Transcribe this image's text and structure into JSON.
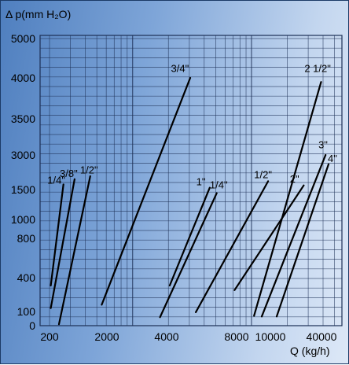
{
  "chart_data": {
    "type": "line",
    "title": "",
    "ylabel": "Δ p(mm H₂O)",
    "xlabel": "Q (kg/h)",
    "x_scale": "log",
    "y_scale": "piecewise",
    "grid": true,
    "colors": {
      "grid": "#1c2f55",
      "line": "#000000",
      "background_left": "#4f7fbf",
      "background_right": "#dde8f7"
    },
    "y_ticks": [
      {
        "label": "5000",
        "value": 5000
      },
      {
        "label": "4000",
        "value": 4000
      },
      {
        "label": "3500",
        "value": 3500
      },
      {
        "label": "3000",
        "value": 3000
      },
      {
        "label": "1500",
        "value": 1500
      },
      {
        "label": "1000",
        "value": 1000
      },
      {
        "label": "800",
        "value": 800
      },
      {
        "label": "400",
        "value": 400
      },
      {
        "label": "100",
        "value": 100
      },
      {
        "label": "0",
        "value": 0
      }
    ],
    "x_ticks": [
      {
        "label": "200",
        "value": 200
      },
      {
        "label": "2000",
        "value": 2000
      },
      {
        "label": "4000",
        "value": 4000
      },
      {
        "label": "8000",
        "value": 8000
      },
      {
        "label": "10000",
        "value": 10000
      },
      {
        "label": "40000",
        "value": 40000
      }
    ],
    "series": [
      {
        "name": "1/4\"",
        "group": "left",
        "x": [
          205,
          262
        ],
        "y": [
          330,
          1720
        ]
      },
      {
        "name": "3/8\"",
        "group": "left",
        "x": [
          205,
          325
        ],
        "y": [
          130,
          1950
        ]
      },
      {
        "name": "1/2\"",
        "group": "left",
        "x": [
          240,
          440
        ],
        "y": [
          10,
          2080
        ]
      },
      {
        "name": "3/4\"",
        "group": "left",
        "x": [
          550,
          3050
        ],
        "y": [
          160,
          4000
        ]
      },
      {
        "name": "1\"",
        "group": "middle",
        "x": [
          2050,
          4450
        ],
        "y": [
          330,
          1580
        ]
      },
      {
        "name": "1/4\"",
        "group": "middle",
        "x": [
          1700,
          5100
        ],
        "y": [
          60,
          1440
        ]
      },
      {
        "name": "1/2\"",
        "group": "middle",
        "x": [
          3400,
          13800
        ],
        "y": [
          95,
          1860
        ]
      },
      {
        "name": "2\"",
        "group": "right",
        "x": [
          7200,
          27500
        ],
        "y": [
          290,
          1680
        ]
      },
      {
        "name": "2 1/2\"",
        "group": "right",
        "x": [
          10500,
          38500
        ],
        "y": [
          70,
          3950
        ]
      },
      {
        "name": "3\"",
        "group": "right",
        "x": [
          12200,
          42000
        ],
        "y": [
          65,
          3000
        ]
      },
      {
        "name": "4\"",
        "group": "right",
        "x": [
          16300,
          44500
        ],
        "y": [
          65,
          2600
        ]
      }
    ],
    "series_labels": [
      {
        "text": "1/4\"",
        "anchor_x": 228,
        "anchor_y": 1760
      },
      {
        "text": "3/8\"",
        "anchor_x": 290,
        "anchor_y": 2050
      },
      {
        "text": "1/2\"",
        "anchor_x": 430,
        "anchor_y": 2200
      },
      {
        "text": "3/4\"",
        "anchor_x": 2500,
        "anchor_y": 4150
      },
      {
        "text": "1\"",
        "anchor_x": 3750,
        "anchor_y": 1680
      },
      {
        "text": "1/4\"",
        "anchor_x": 5300,
        "anchor_y": 1550
      },
      {
        "text": "1/2\"",
        "anchor_x": 12500,
        "anchor_y": 2000
      },
      {
        "text": "2\"",
        "anchor_x": 23000,
        "anchor_y": 1800
      },
      {
        "text": "2 1/2\"",
        "anchor_x": 36000,
        "anchor_y": 4150
      },
      {
        "text": "3\"",
        "anchor_x": 40000,
        "anchor_y": 3090
      },
      {
        "text": "4\"",
        "anchor_x": 48000,
        "anchor_y": 2700
      }
    ]
  }
}
